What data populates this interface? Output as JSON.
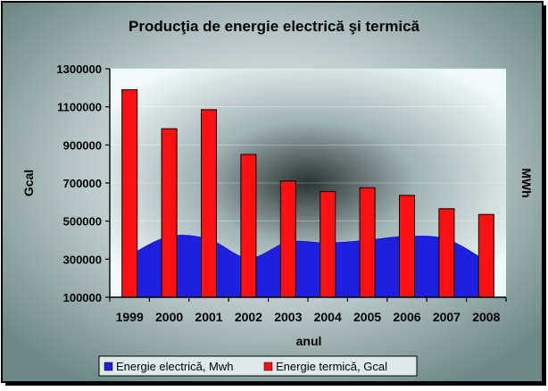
{
  "chart_data": {
    "type": "bar",
    "title": "Producţia de energie electrică şi termică",
    "xlabel": "anul",
    "ylabel": "Gcal",
    "ylabel_right": "MWh",
    "ylim": [
      100000,
      1300000
    ],
    "yticks": [
      100000,
      300000,
      500000,
      700000,
      900000,
      1100000,
      1300000
    ],
    "ytick_labels": [
      "100000",
      "300000",
      "500000",
      "700000",
      "900000",
      "1100000",
      "1300000"
    ],
    "categories": [
      "1999",
      "2000",
      "2001",
      "2002",
      "2003",
      "2004",
      "2005",
      "2006",
      "2007",
      "2008"
    ],
    "legend_position": "bottom",
    "series": [
      {
        "name": "Energie electrică, Mwh",
        "type": "area",
        "color": "#1f1fe0",
        "values": [
          320000,
          420000,
          405000,
          305000,
          390000,
          385000,
          400000,
          420000,
          405000,
          290000
        ]
      },
      {
        "name": "Energie termică, Gcal",
        "type": "bar",
        "color": "#ff1010",
        "values": [
          1190000,
          985000,
          1085000,
          850000,
          710000,
          655000,
          675000,
          635000,
          565000,
          535000
        ]
      }
    ],
    "colors": {
      "outer_frame": "#000000",
      "outer_background": "#8fa5a5",
      "plot_background": "#e8f2f2",
      "plot_shadow": "#303838"
    }
  }
}
